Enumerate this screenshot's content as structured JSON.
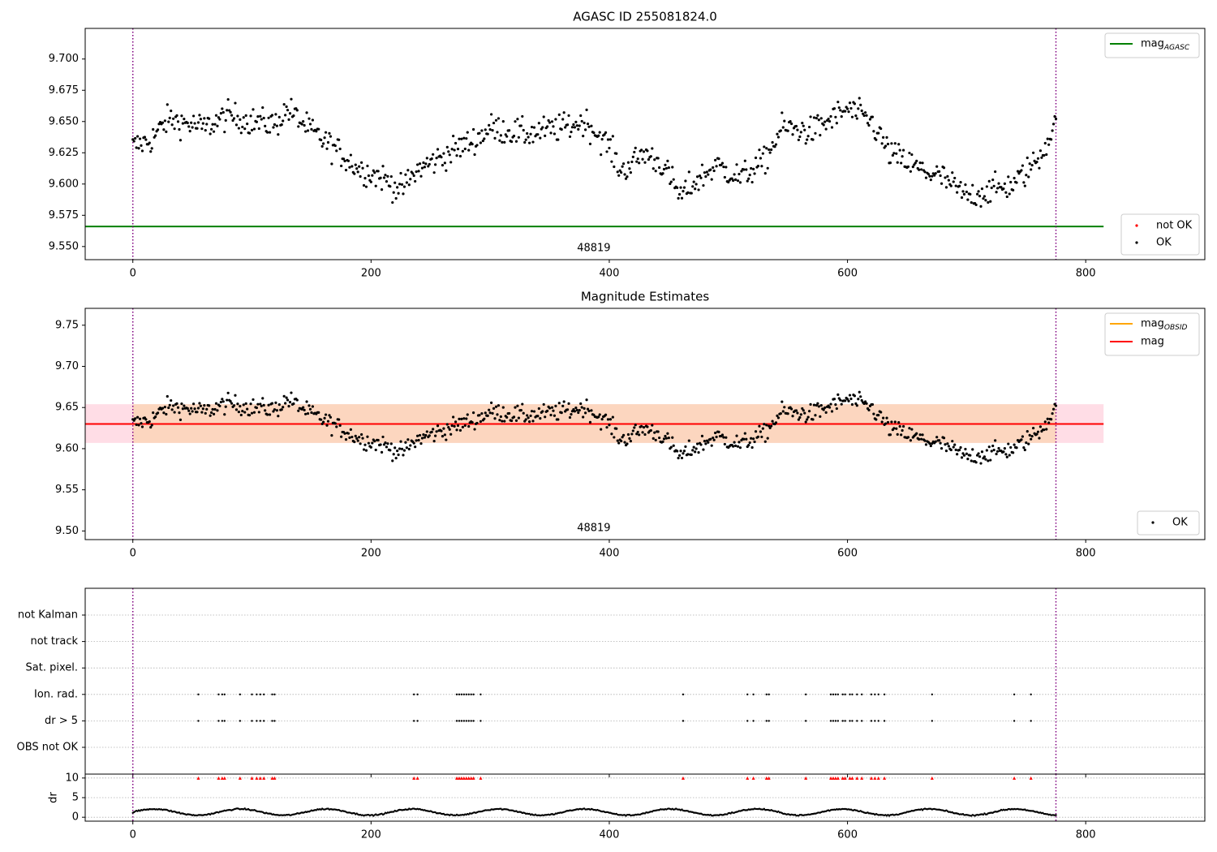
{
  "chart_data": [
    {
      "type": "scatter",
      "title": "AGASC ID 255081824.0",
      "xlim": [
        -40,
        900
      ],
      "ylim": [
        9.5395,
        9.7245
      ],
      "xticks": [
        0,
        200,
        400,
        600,
        800
      ],
      "yticks": [
        9.55,
        9.575,
        9.6,
        9.625,
        9.65,
        9.675,
        9.7
      ],
      "ytick_labels": [
        "9.550",
        "9.575",
        "9.600",
        "9.625",
        "9.650",
        "9.675",
        "9.700"
      ],
      "vlines": [
        0,
        775
      ],
      "hline": {
        "y": 9.566,
        "x": [
          -40,
          815
        ],
        "color": "#008000"
      },
      "obsid_label": {
        "text": "48819",
        "x": 387
      },
      "legend_top": [
        {
          "label": "mag",
          "sub": "AGASC",
          "style": "line",
          "color": "#008000"
        }
      ],
      "legend_bottom": [
        {
          "label": "not OK",
          "style": "point",
          "color": "#ff0000"
        },
        {
          "label": "OK",
          "style": "point",
          "color": "#000000"
        }
      ],
      "series": [
        {
          "name": "OK",
          "color": "#000000",
          "n": 776,
          "x_range": [
            0,
            775
          ],
          "y_trend": [
            [
              0,
              9.63
            ],
            [
              15,
              9.635
            ],
            [
              30,
              9.652
            ],
            [
              60,
              9.645
            ],
            [
              80,
              9.655
            ],
            [
              100,
              9.65
            ],
            [
              120,
              9.648
            ],
            [
              130,
              9.66
            ],
            [
              150,
              9.642
            ],
            [
              170,
              9.628
            ],
            [
              190,
              9.612
            ],
            [
              210,
              9.605
            ],
            [
              225,
              9.595
            ],
            [
              240,
              9.612
            ],
            [
              270,
              9.627
            ],
            [
              290,
              9.637
            ],
            [
              300,
              9.645
            ],
            [
              330,
              9.64
            ],
            [
              360,
              9.645
            ],
            [
              380,
              9.65
            ],
            [
              400,
              9.63
            ],
            [
              410,
              9.61
            ],
            [
              430,
              9.625
            ],
            [
              445,
              9.615
            ],
            [
              460,
              9.59
            ],
            [
              470,
              9.6
            ],
            [
              490,
              9.615
            ],
            [
              510,
              9.605
            ],
            [
              530,
              9.618
            ],
            [
              545,
              9.645
            ],
            [
              570,
              9.642
            ],
            [
              600,
              9.66
            ],
            [
              620,
              9.65
            ],
            [
              635,
              9.625
            ],
            [
              660,
              9.612
            ],
            [
              680,
              9.605
            ],
            [
              700,
              9.59
            ],
            [
              720,
              9.595
            ],
            [
              740,
              9.6
            ],
            [
              760,
              9.62
            ],
            [
              775,
              9.648
            ]
          ]
        }
      ]
    },
    {
      "type": "scatter",
      "title": "Magnitude Estimates",
      "xlim": [
        -40,
        900
      ],
      "ylim": [
        9.4895,
        9.7705
      ],
      "xticks": [
        0,
        200,
        400,
        600,
        800
      ],
      "yticks": [
        9.5,
        9.55,
        9.6,
        9.65,
        9.7,
        9.75
      ],
      "ytick_labels": [
        "9.50",
        "9.55",
        "9.60",
        "9.65",
        "9.70",
        "9.75"
      ],
      "vlines": [
        0,
        775
      ],
      "band": {
        "y0": 9.607,
        "y1": 9.654,
        "x": [
          -40,
          815
        ],
        "fill": "#ffdde6"
      },
      "band_obsid": {
        "y0": 9.607,
        "y1": 9.654,
        "x": [
          0,
          775
        ],
        "fill": "#fcd6bf"
      },
      "hline": {
        "y": 9.63,
        "x": [
          -40,
          815
        ],
        "color": "#ff0000"
      },
      "hline_obsid": {
        "y": 9.63,
        "x": [
          0,
          775
        ],
        "color": "#ffa500"
      },
      "obsid_label": {
        "text": "48819",
        "x": 387
      },
      "legend_top": [
        {
          "label": "mag",
          "sub": "OBSID",
          "style": "line",
          "color": "#ffa500"
        },
        {
          "label": "mag",
          "sub": "",
          "style": "line",
          "color": "#ff0000"
        }
      ],
      "legend_bottom": [
        {
          "label": "OK",
          "style": "point",
          "color": "#000000"
        }
      ]
    },
    {
      "type": "scatter",
      "xlim": [
        -40,
        900
      ],
      "xticks": [
        0,
        200,
        400,
        600,
        800
      ],
      "vlines": [
        0,
        775
      ],
      "flag_rows": [
        "not Kalman",
        "not track",
        "Sat. pixel.",
        "Ion. rad.",
        "dr > 5",
        "OBS not OK"
      ],
      "flag_x": [
        55,
        72,
        75,
        77,
        90,
        100,
        104,
        107,
        110,
        117,
        119,
        236,
        239,
        272,
        274,
        276,
        278,
        280,
        282,
        284,
        286,
        292,
        462,
        516,
        521,
        532,
        534,
        565,
        586,
        588,
        590,
        592,
        596,
        598,
        602,
        604,
        608,
        612,
        620,
        623,
        626,
        631,
        671,
        740,
        754
      ]
    },
    {
      "type": "scatter",
      "xlim": [
        -40,
        900
      ],
      "ylabel": "dr",
      "ylim": [
        -1,
        11
      ],
      "yticks": [
        0,
        5,
        10
      ],
      "xticks": [
        0,
        200,
        400,
        600,
        800
      ],
      "xtick_labels": [
        "0",
        "200",
        "400",
        "600",
        "800"
      ],
      "vlines": [
        0,
        775
      ],
      "series": [
        {
          "name": "OK",
          "color": "#000000",
          "n": 776,
          "x_range": [
            0,
            775
          ]
        },
        {
          "name": "not OK",
          "color": "#ff0000",
          "y": 10,
          "marker": "triangle"
        }
      ]
    }
  ]
}
